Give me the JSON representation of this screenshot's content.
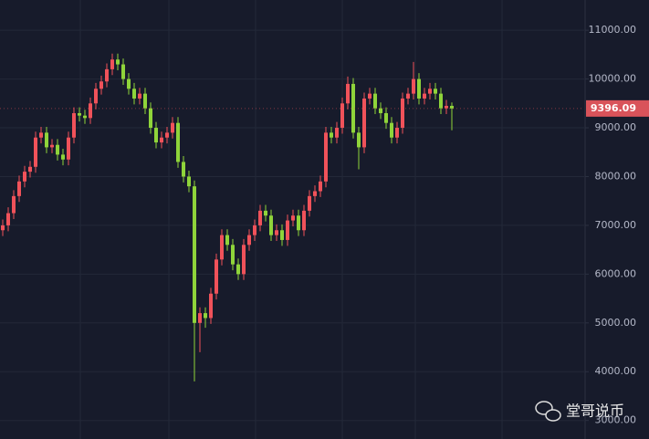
{
  "chart_data": {
    "type": "candlestick",
    "open": [
      6900,
      7000,
      7250,
      7600,
      7900,
      8100,
      8200,
      8800,
      8900,
      8600,
      8650,
      8450,
      8350,
      8800,
      9300,
      9250,
      9200,
      9500,
      9800,
      9950,
      10200,
      10400,
      10300,
      10000,
      9800,
      9600,
      9700,
      9400,
      9000,
      8700,
      8800,
      8900,
      9100,
      8300,
      8000,
      7800,
      5000,
      5200,
      5100,
      5600,
      6300,
      6800,
      6600,
      6200,
      6000,
      6600,
      6800,
      7000,
      7300,
      7200,
      6800,
      6900,
      6700,
      7100,
      7200,
      6900,
      7300,
      7600,
      7700,
      7900,
      8900,
      8800,
      9000,
      9500,
      9900,
      8900,
      8600,
      9600,
      9700,
      9400,
      9300,
      9100,
      8800,
      9000,
      9600,
      9700,
      10000,
      9600,
      9700,
      9800,
      9700,
      9400,
      9450
    ],
    "high": [
      7120,
      7370,
      7720,
      8020,
      8220,
      8320,
      8920,
      9020,
      9020,
      8770,
      8770,
      8570,
      8920,
      9420,
      9420,
      9370,
      9620,
      9920,
      10070,
      10320,
      10520,
      10520,
      10420,
      10120,
      9920,
      9820,
      9820,
      9520,
      9120,
      8920,
      9020,
      9220,
      9220,
      8420,
      8120,
      7920,
      5320,
      5320,
      5720,
      6420,
      6920,
      6920,
      6720,
      6320,
      6720,
      6920,
      7120,
      7420,
      7420,
      7320,
      7020,
      7020,
      7220,
      7320,
      7320,
      7420,
      7720,
      7820,
      8020,
      9020,
      9020,
      9120,
      9620,
      10050,
      10020,
      9020,
      9720,
      9820,
      9820,
      9520,
      9420,
      9220,
      9120,
      9720,
      9820,
      10350,
      10120,
      9820,
      9920,
      9920,
      9820,
      9570,
      9520
    ],
    "low": [
      6780,
      6880,
      7130,
      7480,
      7780,
      7980,
      8080,
      8680,
      8480,
      8480,
      8330,
      8230,
      8230,
      8680,
      9130,
      9080,
      9080,
      9380,
      9680,
      9830,
      10080,
      10180,
      9880,
      9680,
      9480,
      9480,
      9280,
      8880,
      8580,
      8580,
      8680,
      8780,
      8180,
      7880,
      7680,
      3800,
      4400,
      4900,
      4980,
      5480,
      6180,
      6480,
      6080,
      5880,
      5880,
      6480,
      6680,
      6880,
      7080,
      6680,
      6680,
      6580,
      6580,
      6980,
      6780,
      6780,
      7180,
      7480,
      7580,
      7780,
      8680,
      8680,
      8880,
      9380,
      8780,
      8150,
      8480,
      9480,
      9280,
      9180,
      8980,
      8680,
      8680,
      8880,
      9480,
      9580,
      9480,
      9480,
      9580,
      9580,
      9280,
      9280,
      8950
    ],
    "close": [
      7000,
      7250,
      7600,
      7900,
      8100,
      8200,
      8800,
      8900,
      8600,
      8650,
      8450,
      8350,
      8800,
      9300,
      9250,
      9200,
      9500,
      9800,
      9950,
      10200,
      10400,
      10300,
      10000,
      9800,
      9600,
      9700,
      9400,
      9000,
      8700,
      8800,
      8900,
      9100,
      8300,
      8000,
      7800,
      5000,
      5200,
      5100,
      5600,
      6300,
      6800,
      6600,
      6200,
      6000,
      6600,
      6800,
      7000,
      7300,
      7200,
      6800,
      6900,
      6700,
      7100,
      7200,
      6900,
      7300,
      7600,
      7700,
      7900,
      8900,
      8800,
      9000,
      9500,
      9900,
      8900,
      8600,
      9600,
      9700,
      9400,
      9300,
      9100,
      8800,
      9000,
      9600,
      9700,
      10000,
      9600,
      9700,
      9800,
      9700,
      9400,
      9450,
      9396.09
    ],
    "up_color": "#f0525a",
    "down_color": "#8fd43a",
    "last_price": 9396.09,
    "ylim": [
      2620,
      11620
    ],
    "yticks": [
      {
        "value": 3000,
        "label": "3000.00"
      },
      {
        "value": 4000,
        "label": "4000.00"
      },
      {
        "value": 5000,
        "label": "5000.00"
      },
      {
        "value": 6000,
        "label": "6000.00"
      },
      {
        "value": 7000,
        "label": "7000.00"
      },
      {
        "value": 8000,
        "label": "8000.00"
      },
      {
        "value": 9000,
        "label": "9000.00"
      },
      {
        "value": 10000,
        "label": "10000.00"
      },
      {
        "value": 11000,
        "label": "11000.00"
      }
    ],
    "grid": true,
    "watermark": "堂哥说币"
  }
}
